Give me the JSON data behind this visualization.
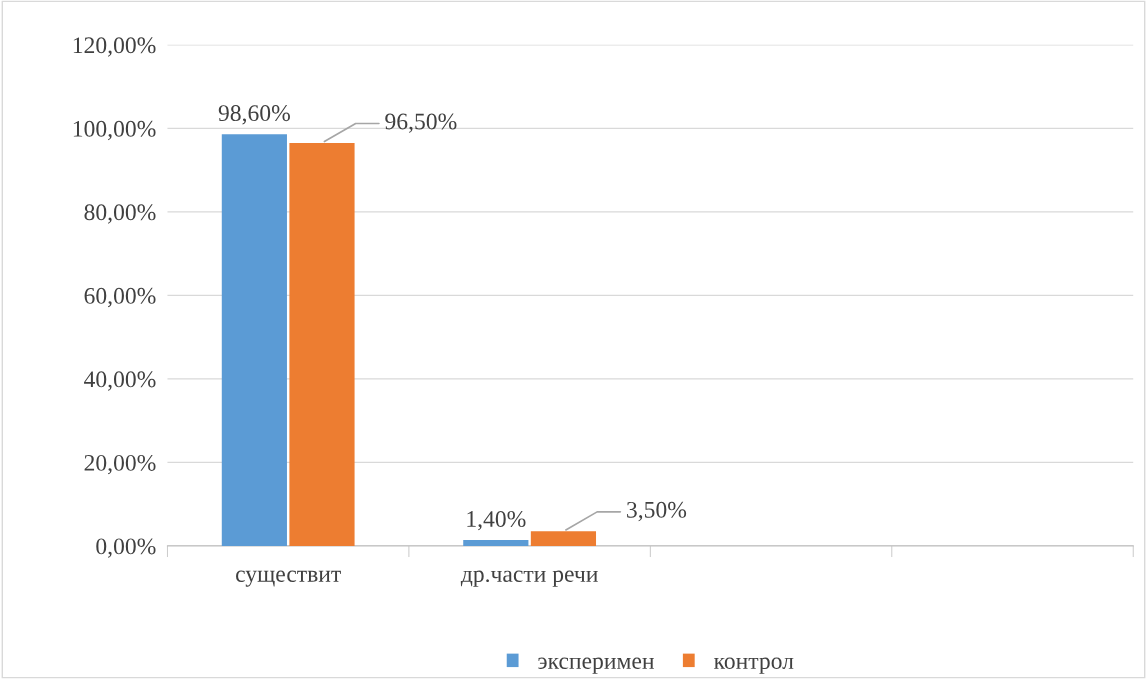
{
  "chart_data": {
    "type": "bar",
    "categories": [
      "существит",
      "др.части речи",
      null,
      null
    ],
    "series": [
      {
        "name": "эксперимен",
        "color": "#5b9bd5",
        "values": [
          98.6,
          1.4,
          null,
          null
        ],
        "value_labels": [
          "98,60%",
          "1,40%",
          null,
          null
        ]
      },
      {
        "name": "контрол",
        "color": "#ed7d31",
        "values": [
          96.5,
          3.5,
          null,
          null
        ],
        "value_labels": [
          "96,50%",
          "3,50%",
          null,
          null
        ]
      }
    ],
    "ylim": [
      0,
      120
    ],
    "yticks": [
      {
        "value": 0,
        "label": "0,00%"
      },
      {
        "value": 20,
        "label": "20,00%"
      },
      {
        "value": 40,
        "label": "40,00%"
      },
      {
        "value": 60,
        "label": "60,00%"
      },
      {
        "value": 80,
        "label": "80,00%"
      },
      {
        "value": 100,
        "label": "100,00%"
      },
      {
        "value": 120,
        "label": "120,00%"
      }
    ],
    "grid": "y",
    "legend": "bottom"
  }
}
